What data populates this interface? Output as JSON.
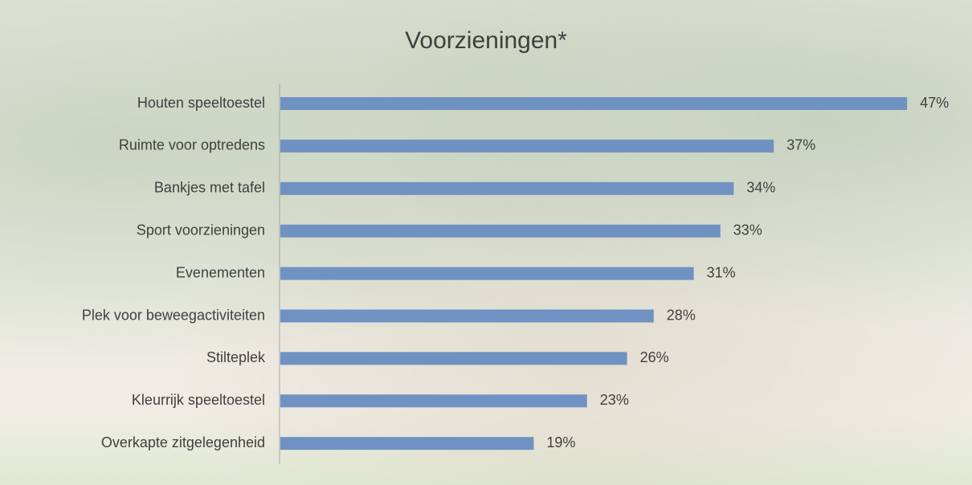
{
  "chart_data": {
    "type": "bar",
    "orientation": "horizontal",
    "title": "Voorzieningen*",
    "categories": [
      "Houten speeltoestel",
      "Ruimte voor optredens",
      "Bankjes met tafel",
      "Sport voorzieningen",
      "Evenementen",
      "Plek voor beweegactiviteiten",
      "Stilteplek",
      "Kleurrijk speeltoestel",
      "Overkapte zitgelegenheid"
    ],
    "values": [
      47,
      37,
      34,
      33,
      31,
      28,
      26,
      23,
      19
    ],
    "value_labels": [
      "47%",
      "37%",
      "34%",
      "33%",
      "31%",
      "28%",
      "26%",
      "23%",
      "19%"
    ],
    "color": "#7092c2"
  }
}
